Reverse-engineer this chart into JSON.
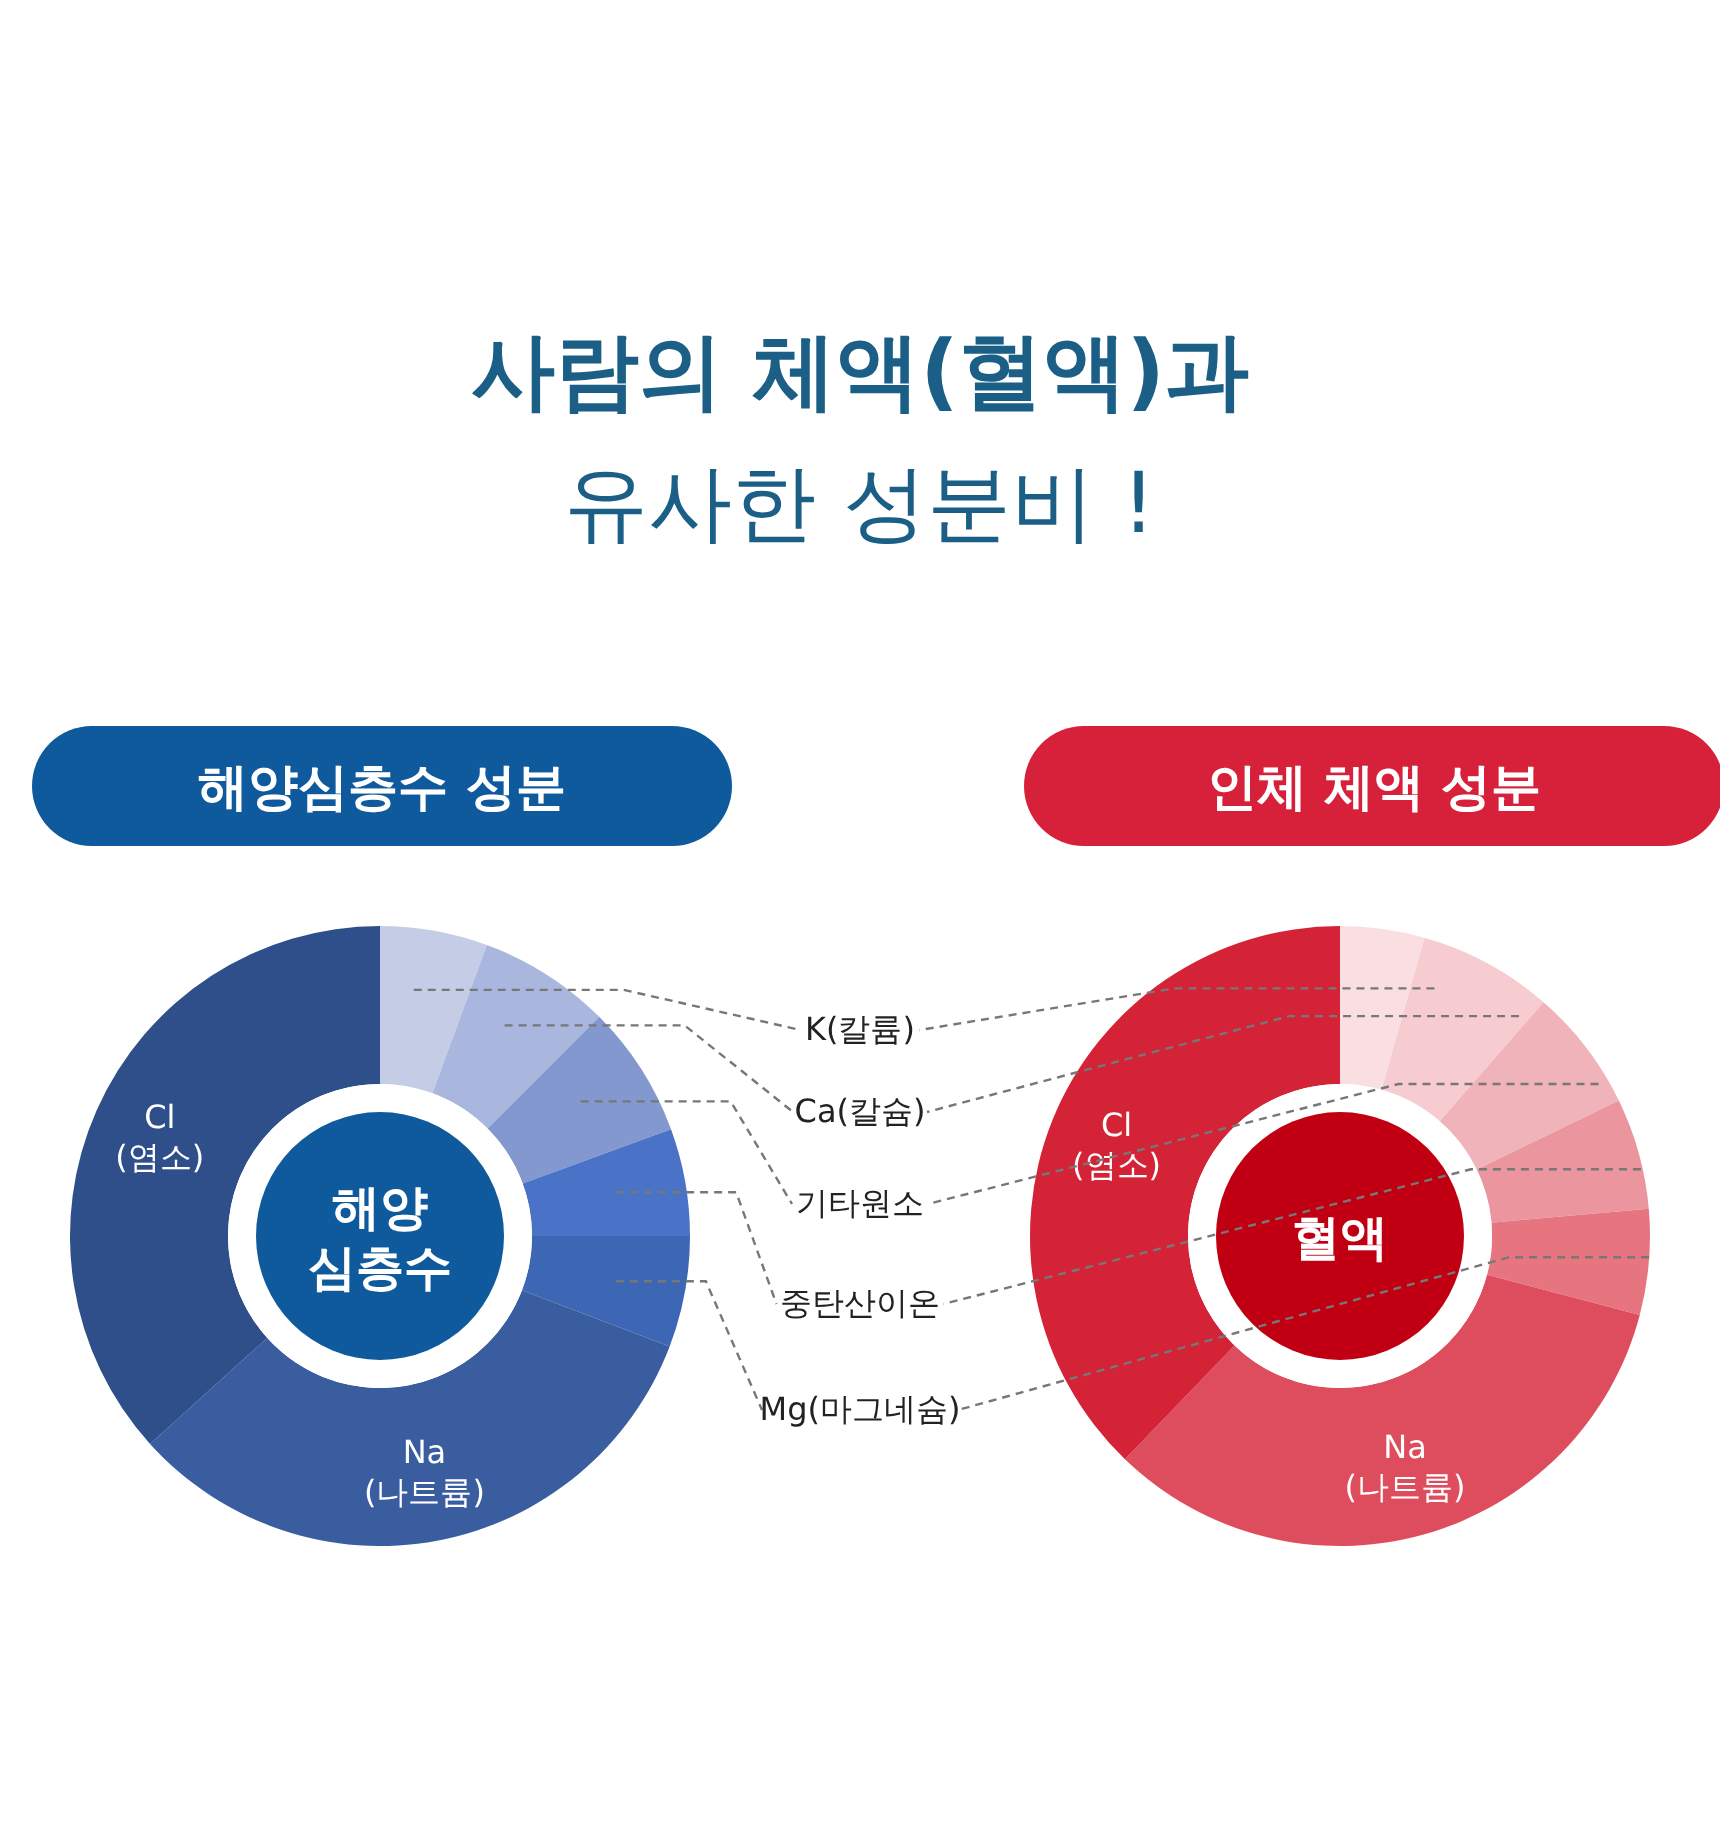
{
  "chart_data": [
    {
      "type": "donut",
      "title": "사람의 체액(혈액)과\n유사한 성분비 !",
      "subtitle": "해양심층수 성분",
      "annotations": [
        "해양\n심층수"
      ],
      "categories": [
        "K(칼륨)",
        "Ca(칼슘)",
        "기타원소",
        "중탄산이온",
        "Mg(마그네슘)",
        "Na(나트륨)",
        "Cl(염소)"
      ],
      "values": [
        5.6,
        6.9,
        6.9,
        5.6,
        5.8,
        32.5,
        36.7
      ],
      "colors": [
        "#c5cde6",
        "#a9b6de",
        "#8298cf",
        "#4a72c6",
        "#3d66b5",
        "#3a5da0",
        "#2f4f8a"
      ]
    },
    {
      "type": "donut",
      "subtitle": "인체 체액 성분",
      "annotations": [
        "혈액"
      ],
      "categories": [
        null,
        null,
        null,
        null,
        null,
        "Na(나트륨)",
        "Cl(염소)"
      ],
      "values": [
        4.4,
        7.0,
        6.4,
        5.8,
        5.5,
        33.1,
        37.8
      ],
      "colors": [
        "#fadfe2",
        "#f6ccd1",
        "#f1b3ba",
        "#eb959e",
        "#e77580",
        "#de4d5e",
        "#d42236"
      ]
    }
  ]
}
